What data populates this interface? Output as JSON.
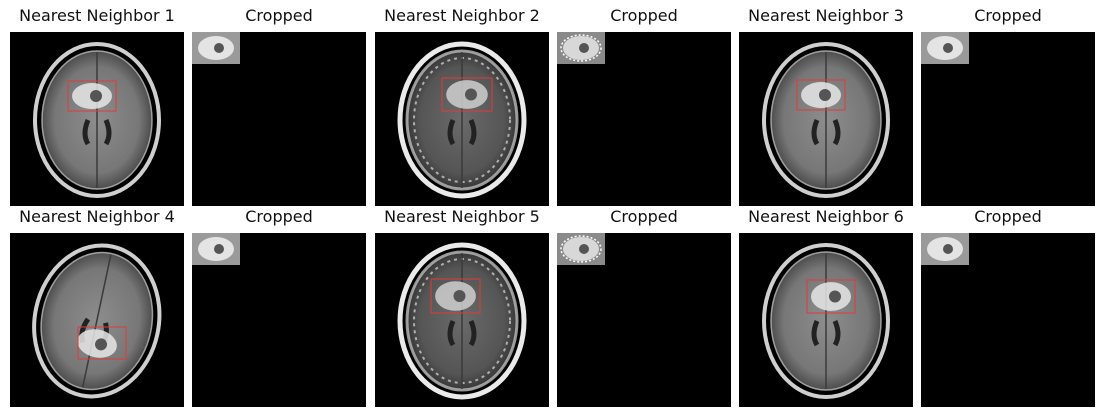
{
  "panels": [
    {
      "title": "Nearest Neighbor 1",
      "kind": "mri",
      "style": "t1",
      "tilt": 0
    },
    {
      "title": "Cropped",
      "kind": "crop",
      "style": "t1"
    },
    {
      "title": "Nearest Neighbor 2",
      "kind": "mri",
      "style": "edge",
      "tilt": 0
    },
    {
      "title": "Cropped",
      "kind": "crop",
      "style": "edge"
    },
    {
      "title": "Nearest Neighbor 3",
      "kind": "mri",
      "style": "t1",
      "tilt": 0
    },
    {
      "title": "Cropped",
      "kind": "crop",
      "style": "t1"
    },
    {
      "title": "Nearest Neighbor 4",
      "kind": "mri",
      "style": "t1",
      "tilt": 12
    },
    {
      "title": "Cropped",
      "kind": "crop",
      "style": "t1"
    },
    {
      "title": "Nearest Neighbor 5",
      "kind": "mri",
      "style": "edge",
      "tilt": 0
    },
    {
      "title": "Cropped",
      "kind": "crop",
      "style": "edge"
    },
    {
      "title": "Nearest Neighbor 6",
      "kind": "mri",
      "style": "t1",
      "tilt": 0
    },
    {
      "title": "Cropped",
      "kind": "crop",
      "style": "t1"
    }
  ],
  "colors": {
    "bbox": "#e03a3a",
    "background": "#000000"
  }
}
